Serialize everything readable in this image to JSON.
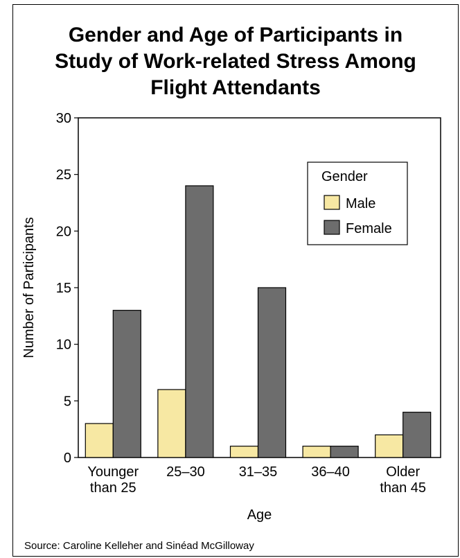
{
  "chart_data": {
    "type": "bar",
    "title_lines": [
      "Gender and Age of Participants in",
      "Study of Work-related Stress Among",
      "Flight Attendants"
    ],
    "xlabel": "Age",
    "ylabel": "Number of Participants",
    "ylim": [
      0,
      30
    ],
    "yticks": [
      "0",
      "5",
      "10",
      "15",
      "20",
      "25",
      "30"
    ],
    "categories": [
      [
        "Younger",
        "than 25"
      ],
      [
        "25–30"
      ],
      [
        "31–35"
      ],
      [
        "36–40"
      ],
      [
        "Older",
        "than 45"
      ]
    ],
    "series": [
      {
        "name": "Male",
        "values": [
          3,
          6,
          1,
          1,
          2
        ],
        "color": "#f7e8a3"
      },
      {
        "name": "Female",
        "values": [
          13,
          24,
          15,
          1,
          4
        ],
        "color": "#6d6d6d"
      }
    ],
    "legend": {
      "title": "Gender",
      "placement": "top-right"
    },
    "grid": false
  },
  "source": "Source: Caroline Kelleher and Sinéad McGilloway"
}
